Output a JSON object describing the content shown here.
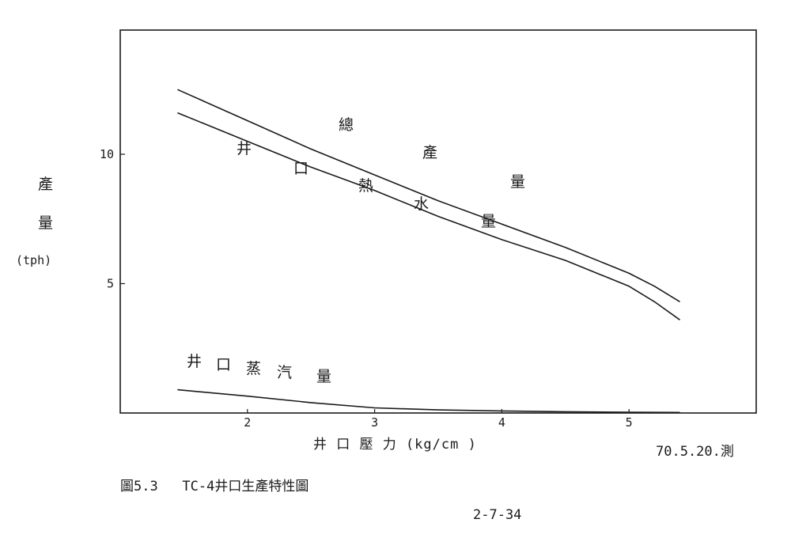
{
  "chart_data": {
    "type": "line",
    "xlabel": "井 口 壓 力 (kg/cm )",
    "ylabel": [
      "產",
      "量",
      "(tph)"
    ],
    "xlim": [
      1.0,
      6.0
    ],
    "ylim": [
      0.0,
      14.8
    ],
    "xticks": [
      "2",
      "3",
      "4",
      "5"
    ],
    "yticks": [
      "5",
      "10"
    ],
    "series": [
      {
        "name": "總產量",
        "x": [
          1.45,
          2.0,
          2.5,
          3.0,
          3.5,
          4.0,
          4.5,
          5.0,
          5.2,
          5.4
        ],
        "y": [
          12.5,
          11.3,
          10.2,
          9.2,
          8.2,
          7.3,
          6.4,
          5.4,
          4.9,
          4.3
        ]
      },
      {
        "name": "井口熱水量",
        "x": [
          1.45,
          2.0,
          2.5,
          3.0,
          3.5,
          4.0,
          4.5,
          5.0,
          5.2,
          5.4
        ],
        "y": [
          11.6,
          10.5,
          9.5,
          8.6,
          7.6,
          6.7,
          5.9,
          4.9,
          4.3,
          3.6
        ]
      },
      {
        "name": "井口蒸汽量",
        "x": [
          1.45,
          2.0,
          2.5,
          3.0,
          3.5,
          4.0,
          4.5,
          5.0,
          5.4
        ],
        "y": [
          0.9,
          0.65,
          0.4,
          0.2,
          0.12,
          0.08,
          0.05,
          0.03,
          0.02
        ]
      }
    ]
  },
  "labels": {
    "total": [
      "總",
      "產",
      "量"
    ],
    "hotwater": [
      "井",
      "口",
      "熱",
      "水",
      "量"
    ],
    "steam": [
      "井",
      "口",
      "蒸",
      "汽",
      "量"
    ]
  },
  "date_note": "70.5.20.測",
  "caption": "圖5.3   TC-4井口生產特性圖",
  "page_number": "2-7-34"
}
